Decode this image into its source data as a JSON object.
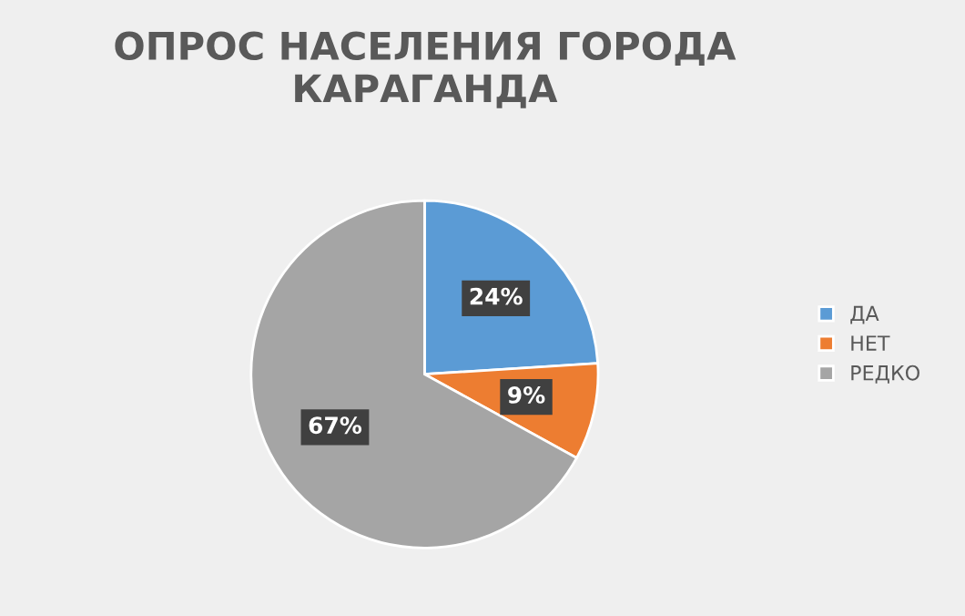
{
  "chart_data": {
    "type": "pie",
    "title": "ОПРОС НАСЕЛЕНИЯ ГОРОДА КАРАГАНДА",
    "categories": [
      "ДА",
      "НЕТ",
      "РЕДКО"
    ],
    "values": [
      24,
      9,
      67
    ],
    "value_labels": [
      "24%",
      "9%",
      "67%"
    ],
    "colors": [
      "#5b9bd5",
      "#ed7d31",
      "#a5a5a5"
    ],
    "legend": "right"
  }
}
